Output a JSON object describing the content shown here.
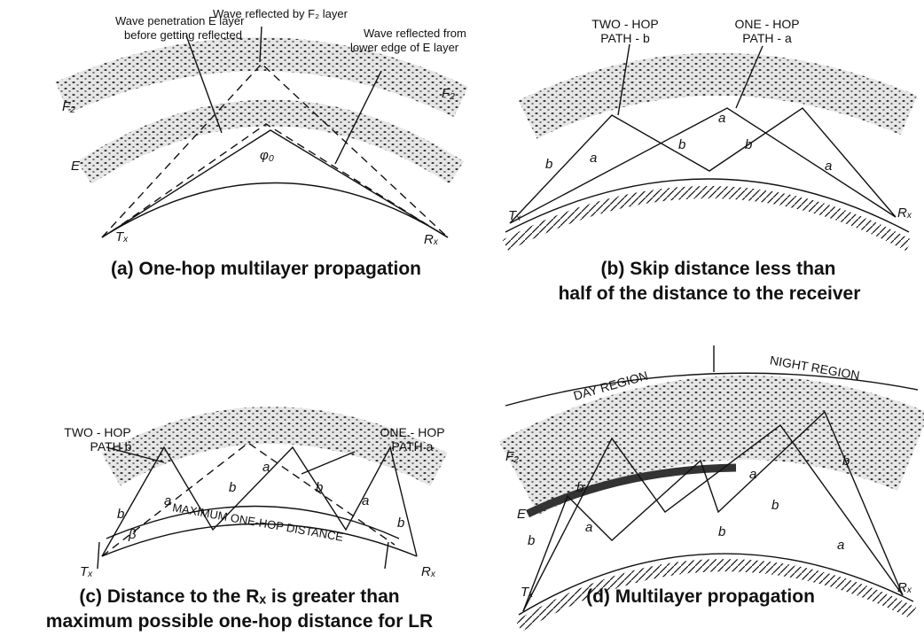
{
  "panels": [
    {
      "caption": [
        "(a) One-hop multilayer propagation"
      ],
      "labels": [
        "Wave penetration E layer",
        "before getting reflected",
        "Wave reflected by F₂ layer",
        "Wave reflected from",
        "lower edge of E layer",
        "F₂",
        "F₂",
        "E",
        "φ₀",
        "Tₓ",
        "Rₓ"
      ]
    },
    {
      "caption": [
        "(b) Skip distance less than",
        "half of the distance to the receiver"
      ],
      "labels": [
        "TWO - HOP",
        "PATH - b",
        "ONE - HOP",
        "PATH - a",
        "b",
        "a",
        "a",
        "b",
        "b",
        "a",
        "Tₓ",
        "Rₓ"
      ]
    },
    {
      "caption": [
        "(c) Distance to the Rₓ is greater than",
        "maximum possible one-hop distance for LR"
      ],
      "labels": [
        "TWO - HOP",
        "PATH b",
        "ONE - HOP",
        "PATH a",
        "b",
        "a",
        "b",
        "a",
        "b",
        "a",
        "b",
        "β",
        "MAXIMUM ONE-HOP DISTANCE",
        "Tₓ",
        "Rₓ"
      ]
    },
    {
      "caption": [
        "(d) Multilayer propagation"
      ],
      "labels": [
        "DAY REGION",
        "NIGHT REGION",
        "F₂",
        "E",
        "b",
        "b",
        "a",
        "a",
        "b",
        "b",
        "a",
        "b",
        "Tₓ",
        "Rₓ"
      ]
    }
  ]
}
